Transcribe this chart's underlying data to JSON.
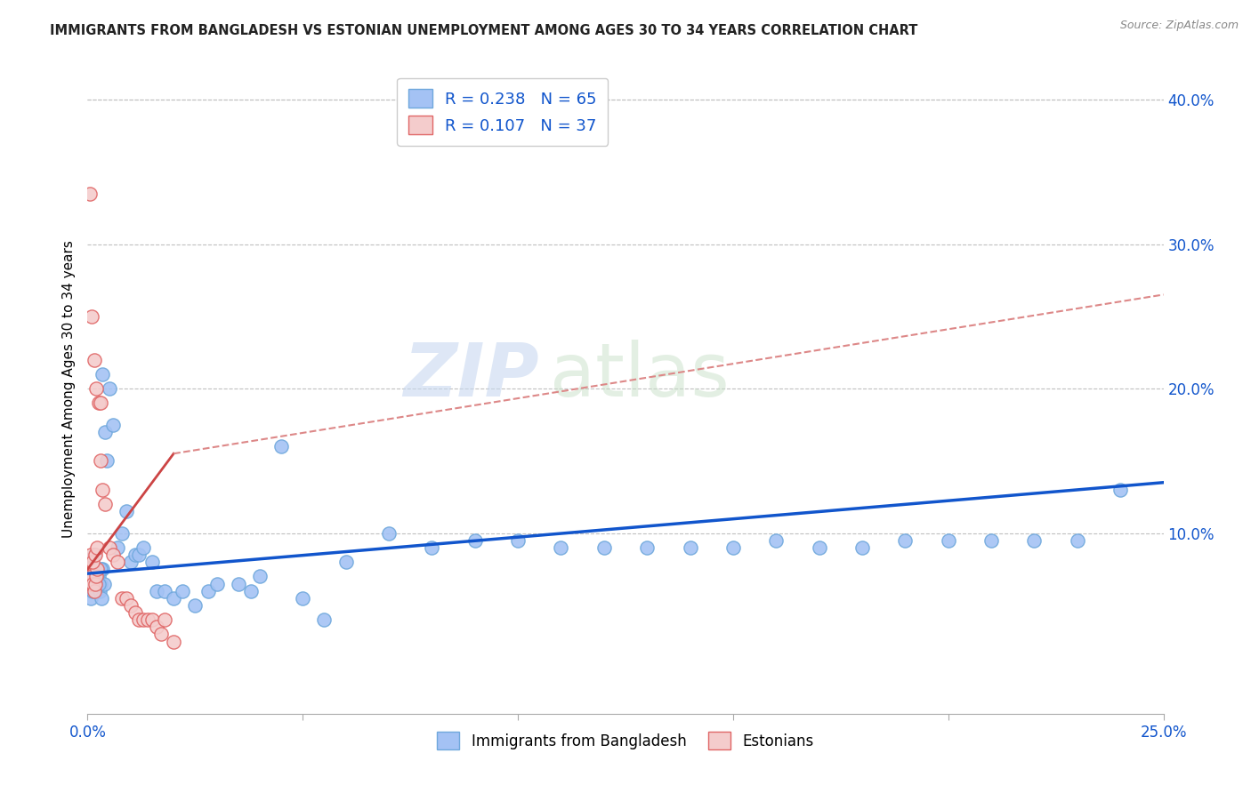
{
  "title": "IMMIGRANTS FROM BANGLADESH VS ESTONIAN UNEMPLOYMENT AMONG AGES 30 TO 34 YEARS CORRELATION CHART",
  "source": "Source: ZipAtlas.com",
  "ylabel": "Unemployment Among Ages 30 to 34 years",
  "right_yticks": [
    "40.0%",
    "30.0%",
    "20.0%",
    "10.0%"
  ],
  "right_ytick_vals": [
    0.4,
    0.3,
    0.2,
    0.1
  ],
  "xmin": 0.0,
  "xmax": 0.25,
  "ymin": -0.025,
  "ymax": 0.425,
  "watermark_zip": "ZIP",
  "watermark_atlas": "atlas",
  "blue_scatter_color": "#a4c2f4",
  "blue_scatter_edge": "#6fa8dc",
  "pink_scatter_color": "#f4cccc",
  "pink_scatter_edge": "#e06666",
  "blue_line_color": "#1155cc",
  "pink_line_color": "#cc4444",
  "pink_dash_color": "#dd8888",
  "grid_color": "#c0c0c0",
  "text_color": "#1155cc",
  "axis_color": "#1155cc",
  "title_color": "#222222",
  "scatter_size": 120,
  "blue_scatter_x": [
    0.0005,
    0.001,
    0.0015,
    0.002,
    0.0025,
    0.003,
    0.0035,
    0.0008,
    0.0012,
    0.0018,
    0.0022,
    0.0028,
    0.0032,
    0.0038,
    0.0005,
    0.001,
    0.0015,
    0.002,
    0.0025,
    0.003,
    0.0035,
    0.004,
    0.0045,
    0.005,
    0.006,
    0.007,
    0.008,
    0.009,
    0.01,
    0.011,
    0.012,
    0.013,
    0.015,
    0.016,
    0.018,
    0.02,
    0.022,
    0.025,
    0.028,
    0.03,
    0.035,
    0.038,
    0.04,
    0.045,
    0.05,
    0.055,
    0.06,
    0.07,
    0.08,
    0.09,
    0.1,
    0.11,
    0.12,
    0.13,
    0.14,
    0.15,
    0.16,
    0.17,
    0.18,
    0.19,
    0.2,
    0.21,
    0.22,
    0.23,
    0.24
  ],
  "blue_scatter_y": [
    0.07,
    0.065,
    0.075,
    0.06,
    0.07,
    0.065,
    0.075,
    0.055,
    0.06,
    0.065,
    0.07,
    0.06,
    0.055,
    0.065,
    0.08,
    0.075,
    0.085,
    0.07,
    0.065,
    0.075,
    0.21,
    0.17,
    0.15,
    0.2,
    0.175,
    0.09,
    0.1,
    0.115,
    0.08,
    0.085,
    0.085,
    0.09,
    0.08,
    0.06,
    0.06,
    0.055,
    0.06,
    0.05,
    0.06,
    0.065,
    0.065,
    0.06,
    0.07,
    0.16,
    0.055,
    0.04,
    0.08,
    0.1,
    0.09,
    0.095,
    0.095,
    0.09,
    0.09,
    0.09,
    0.09,
    0.09,
    0.095,
    0.09,
    0.09,
    0.095,
    0.095,
    0.095,
    0.095,
    0.095,
    0.13
  ],
  "pink_scatter_x": [
    0.0003,
    0.0005,
    0.0008,
    0.001,
    0.0012,
    0.0015,
    0.0018,
    0.002,
    0.0022,
    0.0005,
    0.001,
    0.0015,
    0.002,
    0.0025,
    0.003,
    0.0008,
    0.0012,
    0.0018,
    0.0022,
    0.003,
    0.0035,
    0.004,
    0.005,
    0.006,
    0.007,
    0.008,
    0.009,
    0.01,
    0.011,
    0.012,
    0.013,
    0.014,
    0.015,
    0.016,
    0.017,
    0.018,
    0.02
  ],
  "pink_scatter_y": [
    0.075,
    0.07,
    0.065,
    0.07,
    0.065,
    0.06,
    0.065,
    0.07,
    0.075,
    0.335,
    0.25,
    0.22,
    0.2,
    0.19,
    0.19,
    0.085,
    0.08,
    0.085,
    0.09,
    0.15,
    0.13,
    0.12,
    0.09,
    0.085,
    0.08,
    0.055,
    0.055,
    0.05,
    0.045,
    0.04,
    0.04,
    0.04,
    0.04,
    0.035,
    0.03,
    0.04,
    0.025
  ],
  "blue_line_x": [
    0.0,
    0.25
  ],
  "blue_line_y": [
    0.072,
    0.135
  ],
  "pink_solid_line_x": [
    0.0,
    0.02
  ],
  "pink_solid_line_y": [
    0.075,
    0.155
  ],
  "pink_dash_line_x": [
    0.02,
    0.25
  ],
  "pink_dash_line_y": [
    0.155,
    0.265
  ],
  "legend1_text": "R = 0.238   N = 65",
  "legend2_text": "R = 0.107   N = 37",
  "bottom_legend1": "Immigrants from Bangladesh",
  "bottom_legend2": "Estonians"
}
